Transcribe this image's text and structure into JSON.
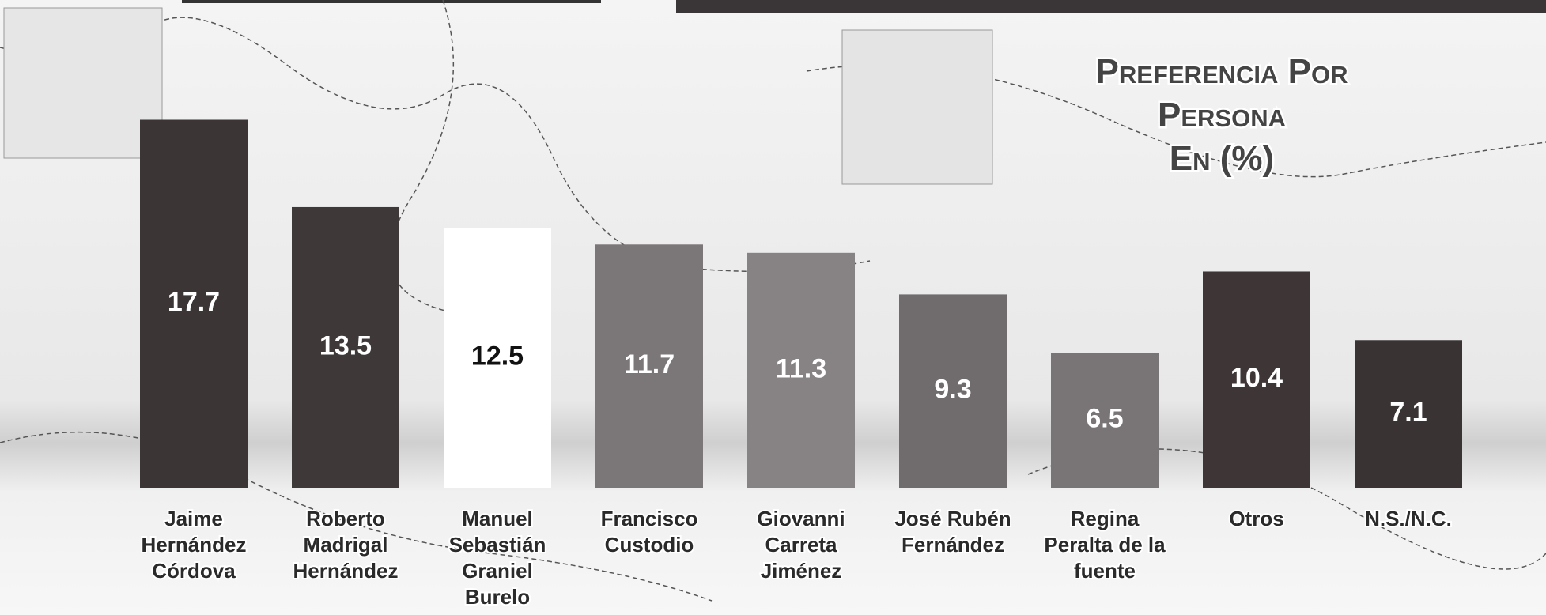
{
  "chart_data": {
    "type": "bar",
    "title": [
      "Preferencia Por",
      "Persona",
      "En (%)"
    ],
    "categories": [
      [
        "Jaime",
        "Hernández",
        "Córdova"
      ],
      [
        "Roberto",
        "Madrigal",
        "Hernández"
      ],
      [
        "Manuel",
        "Sebastián",
        "Graniel",
        "Burelo"
      ],
      [
        "Francisco",
        "Custodio"
      ],
      [
        "Giovanni",
        "Carreta",
        "Jiménez"
      ],
      [
        "José Rubén",
        "Fernández"
      ],
      [
        "Regina",
        "Peralta de la",
        "fuente"
      ],
      [
        "Otros"
      ],
      [
        "N.S./N.C."
      ]
    ],
    "values": [
      17.7,
      13.5,
      12.5,
      11.7,
      11.3,
      9.3,
      6.5,
      10.4,
      7.1
    ],
    "colors": [
      "#3b3536",
      "#3e3839",
      "#ffffff",
      "#7b7677",
      "#878283",
      "#706b6c",
      "#797475",
      "#3d3536",
      "#3a3334"
    ]
  }
}
